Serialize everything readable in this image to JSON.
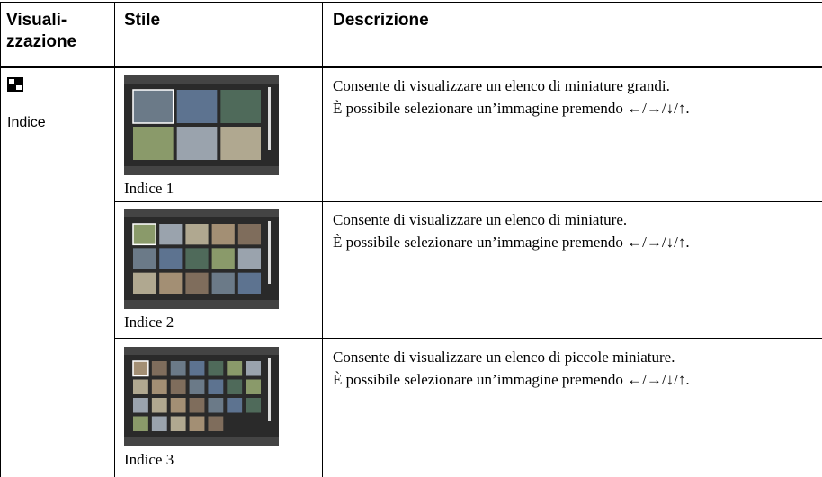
{
  "table": {
    "header": {
      "col1": [
        "Visuali-",
        "zzazione"
      ],
      "col2": "Stile",
      "col3": "Descrizione"
    },
    "group_label": "Indice",
    "rows": [
      {
        "caption": "Indice 1",
        "description": [
          "Consente di visualizzare un elenco di miniature grandi.",
          "È possibile selezionare un’immagine premendo ←/→/↓/↑."
        ]
      },
      {
        "caption": "Indice 2",
        "description": [
          "Consente di visualizzare un elenco di miniature.",
          "È possibile selezionare un’immagine premendo ←/→/↓/↑."
        ]
      },
      {
        "caption": "Indice 3",
        "description": [
          "Consente di visualizzare un elenco di piccole miniature.",
          "È possibile selezionare un’immagine premendo ←/→/↓/↑."
        ]
      }
    ]
  }
}
